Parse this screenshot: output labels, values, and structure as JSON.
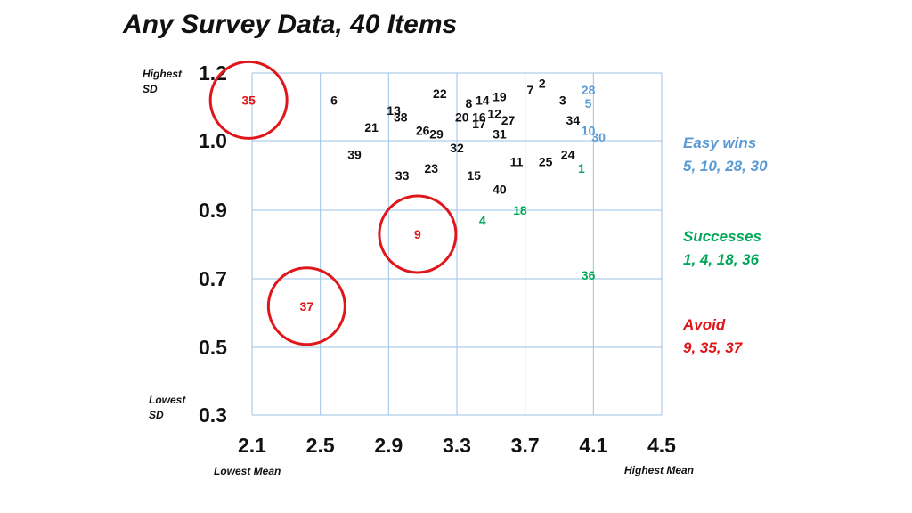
{
  "chart_data": {
    "type": "scatter",
    "title": "Any Survey Data, 40 Items",
    "xlabel_low": "Lowest Mean",
    "xlabel_high": "Highest Mean",
    "ylabel_high": [
      "Highest",
      "SD"
    ],
    "ylabel_low": [
      "Lowest",
      "SD"
    ],
    "x_ticks": [
      {
        "value": 2.1,
        "label": "2.1"
      },
      {
        "value": 2.5,
        "label": "2.5"
      },
      {
        "value": 2.9,
        "label": "2.9"
      },
      {
        "value": 3.3,
        "label": "3.3"
      },
      {
        "value": 3.7,
        "label": "3.7"
      },
      {
        "value": 4.1,
        "label": "4.1"
      },
      {
        "value": 4.5,
        "label": "4.5"
      }
    ],
    "y_ticks": [
      {
        "value": 0.3,
        "label": "0.3"
      },
      {
        "value": 0.5,
        "label": "0.5"
      },
      {
        "value": 0.7,
        "label": "0.7"
      },
      {
        "value": 0.9,
        "label": "0.9"
      },
      {
        "value": 1.0,
        "label": "1.0"
      },
      {
        "value": 1.2,
        "label": "1.2"
      }
    ],
    "grid": true,
    "colors": {
      "normal": "#111111",
      "easy": "#5b9bd5",
      "success": "#00a859",
      "avoid": "#e0161b",
      "grid": "#9dc3e6"
    },
    "points": [
      {
        "label": "1",
        "x": 4.03,
        "y": 0.96,
        "group": "success"
      },
      {
        "label": "2",
        "x": 3.8,
        "y": 1.17,
        "group": "normal"
      },
      {
        "label": "3",
        "x": 3.92,
        "y": 1.12,
        "group": "normal"
      },
      {
        "label": "4",
        "x": 3.45,
        "y": 0.87,
        "group": "success"
      },
      {
        "label": "5",
        "x": 4.07,
        "y": 1.11,
        "group": "easy"
      },
      {
        "label": "6",
        "x": 2.58,
        "y": 1.12,
        "group": "normal"
      },
      {
        "label": "7",
        "x": 3.73,
        "y": 1.15,
        "group": "normal"
      },
      {
        "label": "8",
        "x": 3.37,
        "y": 1.11,
        "group": "normal"
      },
      {
        "label": "9",
        "x": 3.07,
        "y": 0.83,
        "group": "avoid",
        "circled": true
      },
      {
        "label": "10",
        "x": 4.07,
        "y": 1.03,
        "group": "easy"
      },
      {
        "label": "11",
        "x": 3.65,
        "y": 0.97,
        "group": "normal"
      },
      {
        "label": "12",
        "x": 3.52,
        "y": 1.08,
        "group": "normal"
      },
      {
        "label": "13",
        "x": 2.93,
        "y": 1.09,
        "group": "normal"
      },
      {
        "label": "14",
        "x": 3.45,
        "y": 1.12,
        "group": "normal"
      },
      {
        "label": "15",
        "x": 3.4,
        "y": 0.95,
        "group": "normal"
      },
      {
        "label": "16",
        "x": 3.43,
        "y": 1.07,
        "group": "normal"
      },
      {
        "label": "17",
        "x": 3.43,
        "y": 1.05,
        "group": "normal"
      },
      {
        "label": "18",
        "x": 3.67,
        "y": 0.9,
        "group": "success"
      },
      {
        "label": "19",
        "x": 3.55,
        "y": 1.13,
        "group": "normal"
      },
      {
        "label": "20",
        "x": 3.33,
        "y": 1.07,
        "group": "normal"
      },
      {
        "label": "21",
        "x": 2.8,
        "y": 1.04,
        "group": "normal"
      },
      {
        "label": "22",
        "x": 3.2,
        "y": 1.14,
        "group": "normal"
      },
      {
        "label": "23",
        "x": 3.15,
        "y": 0.96,
        "group": "normal"
      },
      {
        "label": "24",
        "x": 3.95,
        "y": 0.98,
        "group": "normal"
      },
      {
        "label": "25",
        "x": 3.82,
        "y": 0.97,
        "group": "normal"
      },
      {
        "label": "26",
        "x": 3.1,
        "y": 1.03,
        "group": "normal"
      },
      {
        "label": "27",
        "x": 3.6,
        "y": 1.06,
        "group": "normal"
      },
      {
        "label": "28",
        "x": 4.07,
        "y": 1.15,
        "group": "easy"
      },
      {
        "label": "29",
        "x": 3.18,
        "y": 1.02,
        "group": "normal"
      },
      {
        "label": "30",
        "x": 4.13,
        "y": 1.01,
        "group": "easy"
      },
      {
        "label": "31",
        "x": 3.55,
        "y": 1.02,
        "group": "normal"
      },
      {
        "label": "32",
        "x": 3.3,
        "y": 0.99,
        "group": "normal"
      },
      {
        "label": "33",
        "x": 2.98,
        "y": 0.95,
        "group": "normal"
      },
      {
        "label": "34",
        "x": 3.98,
        "y": 1.06,
        "group": "normal"
      },
      {
        "label": "35",
        "x": 2.08,
        "y": 1.12,
        "group": "avoid",
        "circled": true
      },
      {
        "label": "36",
        "x": 4.07,
        "y": 0.71,
        "group": "success"
      },
      {
        "label": "37",
        "x": 2.42,
        "y": 0.62,
        "group": "avoid",
        "circled": true
      },
      {
        "label": "38",
        "x": 2.97,
        "y": 1.07,
        "group": "normal"
      },
      {
        "label": "39",
        "x": 2.7,
        "y": 0.98,
        "group": "normal"
      },
      {
        "label": "40",
        "x": 3.55,
        "y": 0.93,
        "group": "normal"
      }
    ],
    "legend": [
      {
        "group": "easy",
        "title": "Easy wins",
        "items": "5, 10, 28, 30"
      },
      {
        "group": "success",
        "title": "Successes",
        "items": "1, 4, 18, 36"
      },
      {
        "group": "avoid",
        "title": "Avoid",
        "items": "9, 35, 37"
      }
    ]
  }
}
